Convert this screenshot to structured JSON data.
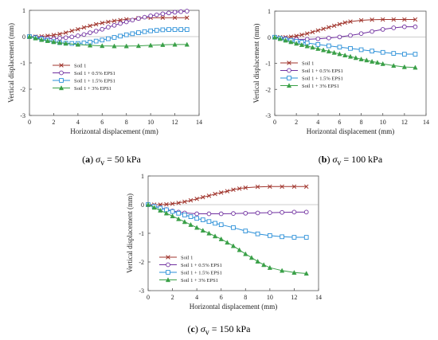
{
  "chart_data": [
    {
      "type": "line",
      "panel": "a",
      "caption": {
        "letter": "a",
        "sigma": "σ",
        "sub": "v",
        "rest": " = 50 kPa"
      },
      "xlabel": "Horizontal displacement (mm)",
      "ylabel": "Vertical displacement (mm)",
      "xlim": [
        0,
        14
      ],
      "ylim": [
        -3,
        1
      ],
      "xticks": [
        0,
        2,
        4,
        6,
        8,
        10,
        12,
        14
      ],
      "yticks": [
        1,
        0,
        -1,
        -2,
        -3
      ],
      "legend_position": "center-left",
      "series": [
        {
          "name": "Soil 1",
          "color": "#a0342c",
          "marker": "x",
          "x": [
            0,
            0.5,
            1,
            1.5,
            2,
            2.5,
            3,
            3.5,
            4,
            4.5,
            5,
            5.5,
            6,
            6.5,
            7,
            7.5,
            8,
            9,
            10,
            11,
            12,
            13
          ],
          "y": [
            0,
            0,
            0.01,
            0.03,
            0.06,
            0.1,
            0.15,
            0.22,
            0.28,
            0.35,
            0.41,
            0.47,
            0.52,
            0.56,
            0.6,
            0.63,
            0.66,
            0.7,
            0.72,
            0.72,
            0.72,
            0.72
          ]
        },
        {
          "name": "Soil 1 + 0.5% EPS1",
          "color": "#7030a0",
          "marker": "circle",
          "x": [
            0,
            0.5,
            1,
            1.5,
            2,
            2.5,
            3,
            3.5,
            4,
            4.5,
            5,
            5.5,
            6,
            6.5,
            7,
            7.5,
            8,
            8.5,
            9,
            9.5,
            10,
            10.5,
            11,
            11.5,
            12,
            12.5,
            13
          ],
          "y": [
            0,
            -0.02,
            -0.05,
            -0.07,
            -0.08,
            -0.06,
            -0.04,
            -0.01,
            0.03,
            0.08,
            0.15,
            0.21,
            0.28,
            0.36,
            0.43,
            0.5,
            0.56,
            0.63,
            0.69,
            0.74,
            0.79,
            0.83,
            0.87,
            0.9,
            0.93,
            0.95,
            0.97
          ]
        },
        {
          "name": "Soil 1 + 1.5% EPS1",
          "color": "#2a8fd8",
          "marker": "square",
          "x": [
            0,
            0.5,
            1,
            1.5,
            2,
            2.5,
            3,
            3.5,
            4,
            4.5,
            5,
            5.5,
            6,
            6.5,
            7,
            7.5,
            8,
            8.5,
            9,
            9.5,
            10,
            10.5,
            11,
            11.5,
            12,
            12.5,
            13
          ],
          "y": [
            0,
            -0.04,
            -0.09,
            -0.14,
            -0.19,
            -0.23,
            -0.25,
            -0.26,
            -0.26,
            -0.24,
            -0.21,
            -0.17,
            -0.13,
            -0.08,
            -0.03,
            0.02,
            0.07,
            0.11,
            0.15,
            0.19,
            0.22,
            0.24,
            0.26,
            0.27,
            0.27,
            0.27,
            0.27
          ]
        },
        {
          "name": "Soil 1 + 3% EPS1",
          "color": "#3aa048",
          "marker": "triangle",
          "x": [
            0,
            0.5,
            1,
            1.5,
            2,
            2.5,
            3,
            4,
            5,
            6,
            7,
            8,
            9,
            10,
            11,
            12,
            13
          ],
          "y": [
            0,
            -0.06,
            -0.12,
            -0.16,
            -0.2,
            -0.23,
            -0.26,
            -0.3,
            -0.33,
            -0.35,
            -0.36,
            -0.36,
            -0.35,
            -0.33,
            -0.31,
            -0.3,
            -0.3
          ]
        }
      ]
    },
    {
      "type": "line",
      "panel": "b",
      "caption": {
        "letter": "b",
        "sigma": "σ",
        "sub": "v",
        "rest": " = 100 kPa"
      },
      "xlabel": "Horizontal displacement (mm)",
      "ylabel": "Vertical displacement (mm)",
      "xlim": [
        0,
        14
      ],
      "ylim": [
        -3,
        1
      ],
      "xticks": [
        0,
        2,
        4,
        6,
        8,
        10,
        12,
        14
      ],
      "yticks": [
        1,
        0,
        -1,
        -2,
        -3
      ],
      "legend_position": "bottom-left",
      "series": [
        {
          "name": "Soil 1",
          "color": "#a0342c",
          "marker": "x",
          "x": [
            0,
            0.5,
            1,
            1.5,
            2,
            2.5,
            3,
            3.5,
            4,
            4.5,
            5,
            5.5,
            6,
            6.5,
            7,
            8,
            9,
            10,
            11,
            12,
            13
          ],
          "y": [
            0,
            0,
            0,
            0.02,
            0.05,
            0.09,
            0.14,
            0.2,
            0.26,
            0.32,
            0.38,
            0.44,
            0.5,
            0.56,
            0.6,
            0.65,
            0.67,
            0.68,
            0.68,
            0.68,
            0.68
          ]
        },
        {
          "name": "Soil 1 + 0.5% EPS1",
          "color": "#7030a0",
          "marker": "circle",
          "x": [
            0,
            1,
            2,
            3,
            4,
            5,
            6,
            7,
            8,
            9,
            10,
            11,
            12,
            13
          ],
          "y": [
            0,
            -0.05,
            -0.08,
            -0.08,
            -0.06,
            -0.03,
            0.01,
            0.07,
            0.14,
            0.22,
            0.3,
            0.36,
            0.4,
            0.4
          ]
        },
        {
          "name": "Soil 1 + 1.5% EPS1",
          "color": "#2a8fd8",
          "marker": "square",
          "x": [
            0,
            0.5,
            1,
            1.5,
            2,
            2.5,
            3,
            4,
            5,
            6,
            7,
            8,
            9,
            10,
            11,
            12,
            13
          ],
          "y": [
            0,
            -0.04,
            -0.08,
            -0.12,
            -0.16,
            -0.19,
            -0.22,
            -0.28,
            -0.33,
            -0.38,
            -0.43,
            -0.48,
            -0.53,
            -0.58,
            -0.62,
            -0.65,
            -0.65
          ]
        },
        {
          "name": "Soil 1 + 3% EPS1",
          "color": "#3aa048",
          "marker": "triangle",
          "x": [
            0,
            0.5,
            1,
            1.5,
            2,
            2.5,
            3,
            3.5,
            4,
            4.5,
            5,
            5.5,
            6,
            6.5,
            7,
            7.5,
            8,
            8.5,
            9,
            9.5,
            10,
            11,
            12,
            13
          ],
          "y": [
            0,
            -0.06,
            -0.12,
            -0.18,
            -0.24,
            -0.29,
            -0.34,
            -0.39,
            -0.44,
            -0.49,
            -0.54,
            -0.59,
            -0.64,
            -0.69,
            -0.74,
            -0.79,
            -0.84,
            -0.88,
            -0.93,
            -0.97,
            -1.02,
            -1.09,
            -1.14,
            -1.16
          ]
        }
      ]
    },
    {
      "type": "line",
      "panel": "c",
      "caption": {
        "letter": "c",
        "sigma": "σ",
        "sub": "v",
        "rest": " = 150 kPa"
      },
      "xlabel": "Horizontal displacement (mm)",
      "ylabel": "Vertical displacement (mm)",
      "xlim": [
        0,
        14
      ],
      "ylim": [
        -3,
        1
      ],
      "xticks": [
        0,
        2,
        4,
        6,
        8,
        10,
        12,
        14
      ],
      "yticks": [
        1,
        0,
        -1,
        -2,
        -3
      ],
      "legend_position": "bottom-left",
      "series": [
        {
          "name": "Soil 1",
          "color": "#a0342c",
          "marker": "x",
          "x": [
            0,
            0.5,
            1,
            1.5,
            2,
            2.5,
            3,
            3.5,
            4,
            4.5,
            5,
            5.5,
            6,
            6.5,
            7,
            7.5,
            8,
            9,
            10,
            11,
            12,
            13
          ],
          "y": [
            0,
            0,
            0,
            0.01,
            0.03,
            0.06,
            0.1,
            0.15,
            0.2,
            0.26,
            0.31,
            0.37,
            0.42,
            0.47,
            0.52,
            0.56,
            0.59,
            0.62,
            0.63,
            0.63,
            0.63,
            0.63
          ]
        },
        {
          "name": "Soil 1 + 0.5% EPS1",
          "color": "#7030a0",
          "marker": "circle",
          "x": [
            0,
            0.5,
            1,
            1.5,
            2,
            2.5,
            3,
            4,
            5,
            6,
            7,
            8,
            9,
            10,
            11,
            12,
            13
          ],
          "y": [
            0,
            -0.05,
            -0.11,
            -0.17,
            -0.22,
            -0.26,
            -0.29,
            -0.32,
            -0.32,
            -0.32,
            -0.31,
            -0.3,
            -0.29,
            -0.28,
            -0.27,
            -0.26,
            -0.26
          ]
        },
        {
          "name": "Soil 1 + 1.5% EPS1",
          "color": "#2a8fd8",
          "marker": "square",
          "x": [
            0,
            0.5,
            1,
            1.5,
            2,
            2.5,
            3,
            3.5,
            4,
            4.5,
            5,
            5.5,
            6,
            7,
            8,
            9,
            10,
            11,
            12,
            13
          ],
          "y": [
            0,
            -0.06,
            -0.12,
            -0.18,
            -0.24,
            -0.3,
            -0.36,
            -0.42,
            -0.48,
            -0.53,
            -0.59,
            -0.65,
            -0.7,
            -0.8,
            -0.92,
            -1.02,
            -1.08,
            -1.12,
            -1.14,
            -1.14
          ]
        },
        {
          "name": "Soil 1 + 3% EPS1",
          "color": "#3aa048",
          "marker": "triangle",
          "x": [
            0,
            0.5,
            1,
            1.5,
            2,
            2.5,
            3,
            3.5,
            4,
            4.5,
            5,
            5.5,
            6,
            6.5,
            7,
            7.5,
            8,
            8.5,
            9,
            9.5,
            10,
            11,
            12,
            13
          ],
          "y": [
            0,
            -0.1,
            -0.2,
            -0.3,
            -0.4,
            -0.5,
            -0.6,
            -0.7,
            -0.8,
            -0.9,
            -1.0,
            -1.1,
            -1.2,
            -1.32,
            -1.44,
            -1.58,
            -1.72,
            -1.85,
            -1.98,
            -2.1,
            -2.2,
            -2.3,
            -2.37,
            -2.4
          ]
        }
      ]
    }
  ]
}
